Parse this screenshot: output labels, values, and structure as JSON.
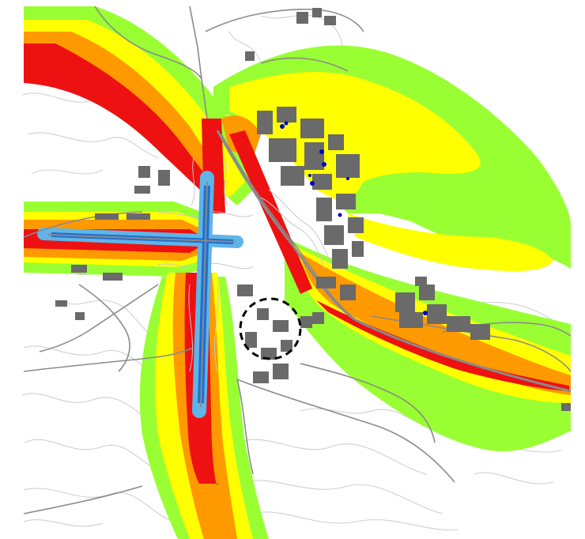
{
  "map": {
    "contour_colors": {
      "zone_outer": "#99ff33",
      "zone_2": "#ffff00",
      "zone_3": "#ff9900",
      "zone_inner": "#ee1111",
      "runway_core": "#1e6fd0",
      "runway_light": "#5fb4e8",
      "road": "#8a8a8a",
      "terrain_contour": "#d0d0d0",
      "building": "#6a6a6a",
      "receptor": "#0000cc",
      "highlight_circle": "#000000"
    },
    "layers": [
      "terrain-contours",
      "noise-zone-outer",
      "noise-zone-2",
      "noise-zone-3",
      "noise-zone-inner",
      "runways",
      "roads",
      "buildings",
      "receptors",
      "highlight-circle"
    ]
  }
}
